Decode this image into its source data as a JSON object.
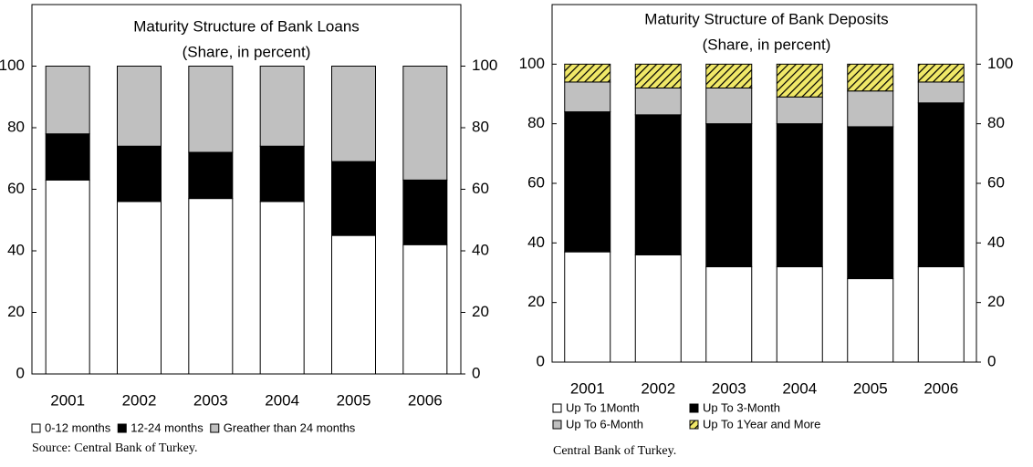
{
  "chart_data": [
    {
      "type": "bar",
      "stacked": true,
      "title": "Maturity Structure of Bank Loans",
      "subtitle": "(Share, in percent)",
      "categories": [
        "2001",
        "2002",
        "2003",
        "2004",
        "2005",
        "2006"
      ],
      "series": [
        {
          "name": "0-12 months",
          "color": "#ffffff",
          "values": [
            63,
            56,
            57,
            56,
            45,
            42
          ]
        },
        {
          "name": "12-24 months",
          "color": "#000000",
          "values": [
            15,
            18,
            15,
            18,
            24,
            21
          ]
        },
        {
          "name": "Greather than 24 months",
          "color": "#c0c0c0",
          "values": [
            22,
            26,
            28,
            26,
            31,
            37
          ]
        }
      ],
      "ylim": [
        0,
        120
      ],
      "yticks": [
        0,
        20,
        40,
        60,
        80,
        100
      ],
      "y2lim": [
        0,
        120
      ],
      "y2ticks": [
        0,
        20,
        40,
        60,
        80,
        100
      ],
      "source": "Source: Central Bank of Turkey."
    },
    {
      "type": "bar",
      "stacked": true,
      "title": "Maturity Structure of Bank Deposits",
      "subtitle": "(Share, in percent)",
      "categories": [
        "2001",
        "2002",
        "2003",
        "2004",
        "2005",
        "2006"
      ],
      "series": [
        {
          "name": "Up To 1Month",
          "color": "#ffffff",
          "values": [
            37,
            36,
            32,
            32,
            28,
            32
          ]
        },
        {
          "name": "Up To 3-Month",
          "color": "#000000",
          "values": [
            47,
            47,
            48,
            48,
            51,
            55
          ]
        },
        {
          "name": "Up To 6-Month",
          "color": "#c0c0c0",
          "values": [
            10,
            9,
            12,
            9,
            12,
            7
          ]
        },
        {
          "name": "Up To 1Year and More",
          "color": "#f0e868",
          "hatch": true,
          "values": [
            6,
            8,
            8,
            11,
            9,
            6
          ]
        }
      ],
      "ylim": [
        0,
        120
      ],
      "yticks": [
        0,
        20,
        40,
        60,
        80,
        100
      ],
      "y2lim": [
        0,
        120
      ],
      "y2ticks": [
        0,
        20,
        40,
        60,
        80,
        100
      ],
      "source": "Central Bank of Turkey."
    }
  ]
}
